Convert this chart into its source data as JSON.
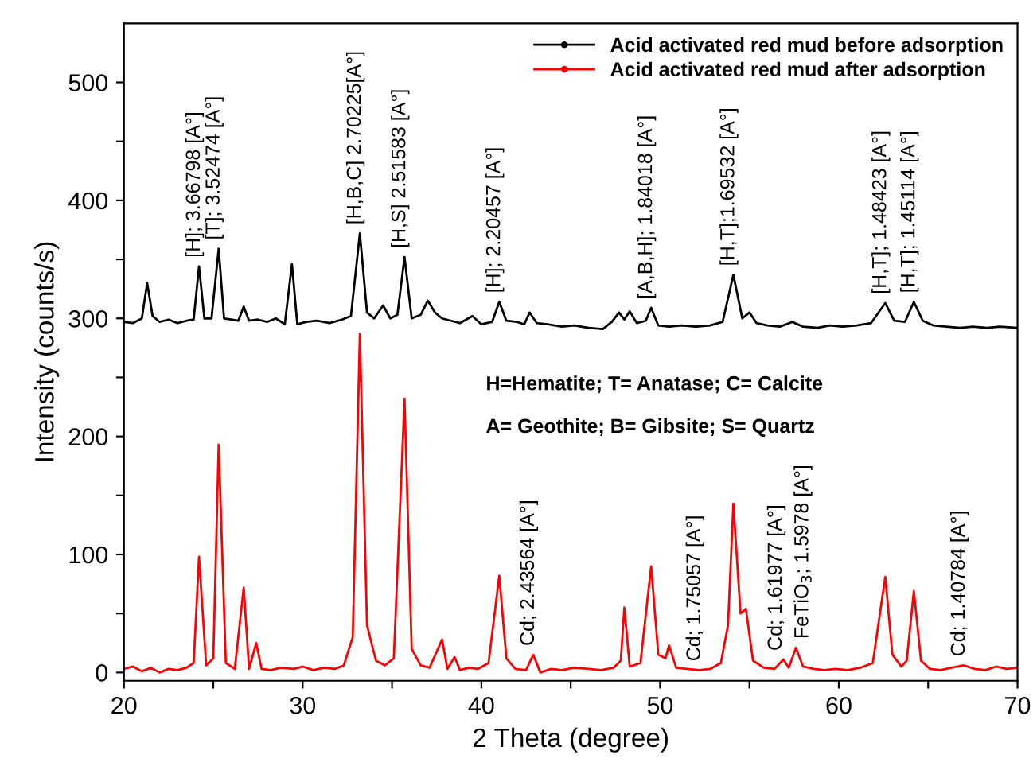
{
  "chart_data": {
    "type": "line",
    "xlabel": "2 Theta (degree)",
    "ylabel": "Intensity (counts/s)",
    "xlim": [
      20,
      70
    ],
    "ylim": [
      -7,
      550
    ],
    "xticks": [
      20,
      {
        "value": 25,
        "label": null
      },
      30,
      {
        "value": 35,
        "label": null
      },
      40,
      {
        "value": 45,
        "label": null
      },
      50,
      {
        "value": 55,
        "label": null
      },
      60,
      {
        "value": 65,
        "label": null
      },
      70
    ],
    "yticks": [
      0,
      {
        "value": 50,
        "label": null
      },
      100,
      {
        "value": 150,
        "label": null
      },
      200,
      {
        "value": 250,
        "label": null
      },
      300,
      {
        "value": 350,
        "label": null
      },
      400,
      {
        "value": 450,
        "label": null
      },
      500
    ],
    "grid": false,
    "legend": "top right",
    "series": [
      {
        "name": "Acid activated red mud before adsorption",
        "color": "#000000",
        "x": [
          20,
          20.5,
          21.0,
          21.3,
          21.6,
          22.0,
          22.5,
          23.0,
          23.5,
          23.9,
          24.2,
          24.5,
          24.9,
          25.3,
          25.6,
          26.0,
          26.4,
          26.7,
          27.0,
          27.5,
          28.0,
          28.5,
          29.0,
          29.4,
          29.7,
          30.2,
          30.8,
          31.5,
          32.2,
          32.7,
          33.2,
          33.6,
          34.0,
          34.5,
          34.9,
          35.3,
          35.7,
          36.1,
          36.6,
          37.0,
          37.4,
          37.8,
          38.3,
          38.8,
          39.5,
          40.0,
          40.6,
          41.0,
          41.4,
          42.0,
          42.4,
          42.7,
          43.1,
          43.7,
          44.5,
          45.2,
          46.0,
          46.8,
          47.3,
          47.7,
          48.0,
          48.3,
          48.7,
          49.2,
          49.5,
          49.9,
          50.5,
          51.2,
          52.0,
          52.8,
          53.5,
          54.1,
          54.6,
          55.0,
          55.4,
          56.0,
          56.7,
          57.4,
          58.0,
          58.8,
          59.5,
          60.2,
          61.0,
          61.8,
          62.6,
          63.1,
          63.7,
          64.2,
          64.7,
          65.3,
          66.0,
          66.8,
          67.5,
          68.3,
          69.0,
          70
        ],
        "values": [
          297,
          296,
          300,
          330,
          302,
          297,
          299,
          296,
          298,
          299,
          344,
          300,
          300,
          359,
          300,
          299,
          298,
          310,
          298,
          299,
          297,
          300,
          295,
          346,
          295,
          297,
          298,
          296,
          299,
          302,
          372,
          305,
          300,
          311,
          300,
          303,
          352,
          300,
          303,
          315,
          305,
          300,
          298,
          296,
          302,
          295,
          297,
          314,
          298,
          297,
          295,
          305,
          296,
          295,
          293,
          294,
          292,
          291,
          297,
          305,
          299,
          306,
          296,
          298,
          309,
          294,
          293,
          294,
          293,
          294,
          297,
          337,
          300,
          305,
          296,
          294,
          293,
          297,
          293,
          292,
          294,
          293,
          294,
          296,
          313,
          298,
          297,
          314,
          298,
          294,
          293,
          292,
          293,
          292,
          293,
          292
        ]
      },
      {
        "name": "Acid activated red mud after adsorption",
        "color": "#ff0000",
        "x": [
          20,
          20.5,
          21,
          21.5,
          22,
          22.5,
          23,
          23.5,
          23.9,
          24.2,
          24.6,
          25.0,
          25.3,
          25.7,
          26.2,
          26.7,
          27.0,
          27.4,
          27.7,
          28.2,
          28.8,
          29.5,
          30.0,
          30.6,
          31.2,
          31.8,
          32.3,
          32.8,
          33.2,
          33.6,
          34.1,
          34.6,
          35.1,
          35.7,
          36.1,
          36.6,
          37.1,
          37.8,
          38.1,
          38.5,
          38.8,
          39.3,
          39.8,
          40.4,
          41.0,
          41.4,
          41.9,
          42.5,
          42.9,
          43.3,
          43.9,
          44.5,
          45.2,
          46.0,
          46.7,
          47.4,
          47.8,
          48.0,
          48.3,
          48.9,
          49.5,
          49.9,
          50.3,
          50.5,
          50.9,
          51.5,
          52.2,
          52.8,
          53.4,
          53.8,
          54.1,
          54.5,
          54.8,
          55.2,
          55.8,
          56.4,
          56.9,
          57.2,
          57.6,
          58.0,
          58.6,
          59.2,
          59.8,
          60.5,
          61.2,
          61.9,
          62.6,
          63.0,
          63.5,
          63.8,
          64.2,
          64.6,
          65.1,
          65.7,
          66.3,
          67.0,
          67.6,
          68.2,
          68.8,
          69.4,
          70
        ],
        "values": [
          3,
          5,
          1,
          4,
          0,
          3,
          2,
          4,
          8,
          98,
          6,
          12,
          193,
          8,
          3,
          72,
          3,
          25,
          3,
          2,
          4,
          3,
          5,
          2,
          4,
          3,
          6,
          30,
          287,
          40,
          10,
          6,
          12,
          232,
          20,
          6,
          4,
          28,
          3,
          13,
          2,
          4,
          3,
          8,
          82,
          12,
          3,
          2,
          15,
          0,
          3,
          2,
          4,
          3,
          2,
          4,
          10,
          55,
          5,
          8,
          90,
          15,
          12,
          23,
          4,
          3,
          2,
          3,
          8,
          40,
          143,
          50,
          54,
          10,
          4,
          3,
          11,
          4,
          21,
          5,
          3,
          2,
          3,
          2,
          4,
          8,
          81,
          15,
          5,
          10,
          69,
          10,
          3,
          2,
          4,
          6,
          3,
          2,
          5,
          3,
          4
        ]
      }
    ],
    "annotations": [
      {
        "text": "[H]; 3.66798 [A°]",
        "x": 24.2,
        "y": 344
      },
      {
        "text": "[T]; 3.52474 [A°]",
        "x": 25.3,
        "y": 359
      },
      {
        "text": "[H,B,C] 2.70225[A°]",
        "x": 33.2,
        "y": 372
      },
      {
        "text": "[H,S] 2.51583 [A°]",
        "x": 35.7,
        "y": 352
      },
      {
        "text": "[H]; 2.20457 [A°]",
        "x": 41.0,
        "y": 314
      },
      {
        "text": "[A,B,H]; 1.84018 [A°]",
        "x": 49.5,
        "y": 309
      },
      {
        "text": "[H,T];1.69532 [A°]",
        "x": 54.1,
        "y": 337
      },
      {
        "text": "[H,T]; 1.48423 [A°]",
        "x": 62.6,
        "y": 313
      },
      {
        "text": "[H,T]; 1.45114 [A°]",
        "x": 64.2,
        "y": 314
      },
      {
        "text": "Cd; 2.43564 [A°]",
        "x": 42.9,
        "y": 15
      },
      {
        "text": "Cd; 1.75057 [A°]",
        "x": 52.2,
        "y": 2
      },
      {
        "text": "Cd; 1.61977 [A°]",
        "x": 56.9,
        "y": 11
      },
      {
        "text": "FeTiO$_{3}$; 1.5978 [A°]",
        "x": 57.6,
        "y": 21
      },
      {
        "text": "Cd; 1.40784 [A°]",
        "x": 67.0,
        "y": 6
      },
      "H=Hematite; T= Anatase; C= Calcite",
      "A= Geothite; B= Gibsite; S= Quartz"
    ]
  }
}
